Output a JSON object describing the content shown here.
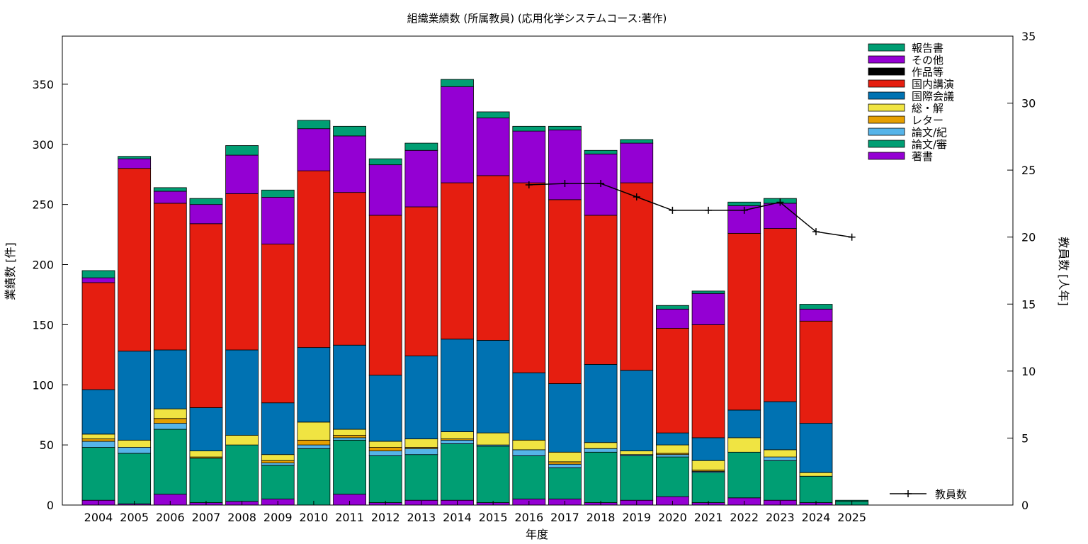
{
  "chart_data": {
    "type": "bar",
    "stacked": true,
    "title": "組織業績数 (所属教員) (応用化学システムコース:著作)",
    "xlabel": "年度",
    "ylabel": "業績数 [件]",
    "y2label": "教員数 [人年]",
    "ylim": [
      0,
      390
    ],
    "y2lim": [
      0,
      35
    ],
    "yticks": [
      0,
      50,
      100,
      150,
      200,
      250,
      300,
      350
    ],
    "y2ticks": [
      0,
      5,
      10,
      15,
      20,
      25,
      30,
      35
    ],
    "grid": false,
    "legend_position": "top-right",
    "categories": [
      "2004",
      "2005",
      "2006",
      "2007",
      "2008",
      "2009",
      "2010",
      "2011",
      "2012",
      "2013",
      "2014",
      "2015",
      "2016",
      "2017",
      "2018",
      "2019",
      "2020",
      "2021",
      "2022",
      "2023",
      "2024",
      "2025"
    ],
    "series": [
      {
        "name": "著書",
        "color": "#9400d3",
        "values": [
          4,
          1,
          9,
          2,
          3,
          5,
          0,
          9,
          2,
          4,
          4,
          2,
          5,
          5,
          2,
          4,
          7,
          2,
          6,
          4,
          2,
          0
        ]
      },
      {
        "name": "論文/審",
        "color": "#009e73",
        "values": [
          44,
          42,
          54,
          37,
          47,
          28,
          47,
          45,
          39,
          38,
          47,
          47,
          36,
          26,
          42,
          37,
          33,
          25,
          38,
          33,
          22,
          3
        ]
      },
      {
        "name": "論文/紀",
        "color": "#56b4e9",
        "values": [
          5,
          5,
          5,
          0,
          0,
          2,
          3,
          2,
          4,
          5,
          3,
          1,
          5,
          3,
          3,
          1,
          2,
          1,
          0,
          3,
          0,
          0
        ]
      },
      {
        "name": "レター",
        "color": "#e69f00",
        "values": [
          2,
          0,
          4,
          1,
          0,
          2,
          4,
          2,
          3,
          1,
          1,
          0,
          0,
          2,
          0,
          0,
          1,
          1,
          0,
          0,
          0,
          0
        ]
      },
      {
        "name": "総・解",
        "color": "#f0e442",
        "values": [
          4,
          6,
          8,
          5,
          8,
          5,
          15,
          5,
          5,
          7,
          6,
          10,
          8,
          8,
          5,
          3,
          7,
          8,
          12,
          6,
          3,
          0
        ]
      },
      {
        "name": "国際会議",
        "color": "#0072b2",
        "values": [
          37,
          74,
          49,
          36,
          71,
          43,
          62,
          70,
          55,
          69,
          77,
          77,
          56,
          57,
          65,
          67,
          10,
          19,
          23,
          40,
          41,
          0
        ]
      },
      {
        "name": "国内講演",
        "color": "#e51e10",
        "values": [
          89,
          152,
          122,
          153,
          130,
          132,
          147,
          127,
          133,
          124,
          130,
          137,
          158,
          153,
          124,
          156,
          87,
          94,
          147,
          144,
          85,
          0
        ]
      },
      {
        "name": "作品等",
        "color": "#000000",
        "values": [
          0,
          0,
          0,
          0,
          0,
          0,
          0,
          0,
          0,
          0,
          0,
          0,
          0,
          0,
          0,
          0,
          0,
          0,
          0,
          0,
          0,
          0
        ]
      },
      {
        "name": "その他",
        "color": "#9400d3",
        "values": [
          4,
          8,
          10,
          16,
          32,
          39,
          35,
          47,
          42,
          47,
          80,
          48,
          43,
          58,
          51,
          33,
          16,
          26,
          23,
          21,
          10,
          0
        ]
      },
      {
        "name": "報告書",
        "color": "#009e73",
        "values": [
          6,
          2,
          3,
          5,
          8,
          6,
          7,
          8,
          5,
          6,
          6,
          5,
          4,
          3,
          3,
          3,
          3,
          2,
          3,
          4,
          4,
          1
        ]
      }
    ],
    "line_series": {
      "name": "教員数",
      "color": "#000000",
      "axis": "y2",
      "categories": [
        "2016",
        "2017",
        "2018",
        "2019",
        "2020",
        "2021",
        "2022",
        "2023",
        "2024",
        "2025"
      ],
      "values": [
        23.9,
        24.0,
        24.0,
        23.0,
        22.0,
        22.0,
        22.0,
        22.6,
        20.4,
        20.0
      ]
    }
  }
}
